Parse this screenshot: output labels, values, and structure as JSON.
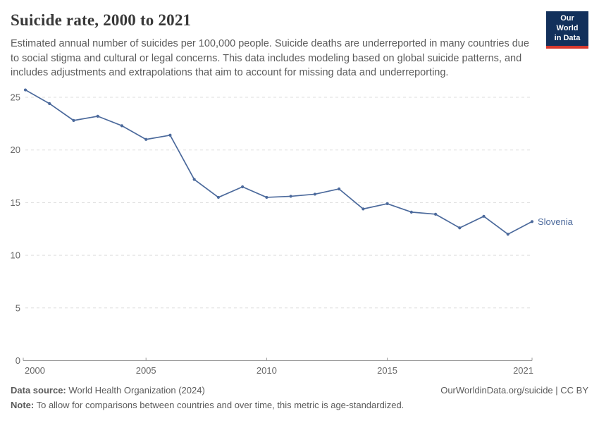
{
  "header": {
    "title": "Suicide rate, 2000 to 2021",
    "subtitle": "Estimated annual number of suicides per 100,000 people. Suicide deaths are underreported in many countries due to social stigma and cultural or legal concerns. This data includes modeling based on global suicide patterns, and includes adjustments and extrapolations that aim to account for missing data and underreporting.",
    "logo": {
      "line1": "Our World",
      "line2": "in Data",
      "bg_color": "#12305b",
      "stripe_color": "#d7382d"
    }
  },
  "chart_data": {
    "type": "line",
    "title": "Suicide rate, 2000 to 2021",
    "x": [
      2000,
      2001,
      2002,
      2003,
      2004,
      2005,
      2006,
      2007,
      2008,
      2009,
      2010,
      2011,
      2012,
      2013,
      2014,
      2015,
      2016,
      2017,
      2018,
      2019,
      2020,
      2021
    ],
    "series": [
      {
        "name": "Slovenia",
        "color": "#4c6a9c",
        "values": [
          25.7,
          24.4,
          22.8,
          23.2,
          22.3,
          21.0,
          21.4,
          17.2,
          15.5,
          16.5,
          15.5,
          15.6,
          15.8,
          16.3,
          14.4,
          14.9,
          14.1,
          13.9,
          12.6,
          13.7,
          12.0,
          13.2
        ]
      }
    ],
    "xticks": [
      2000,
      2005,
      2010,
      2015,
      2021
    ],
    "yticks": [
      0,
      5,
      10,
      15,
      20,
      25
    ],
    "ylim": [
      0,
      26
    ],
    "xlabel": "",
    "ylabel": "",
    "grid": "horizontal-dashed",
    "legend": "line-end-label"
  },
  "footer": {
    "source_label": "Data source:",
    "source_text": " World Health Organization (2024)",
    "note_label": "Note:",
    "note_text": " To allow for comparisons between countries and over time, this metric is age-standardized.",
    "link_text": "OurWorldinData.org/suicide | CC BY"
  },
  "colors": {
    "line": "#4c6a9c",
    "grid": "#dddddd",
    "axis": "#999999",
    "tick_label": "#666666",
    "body_text": "#5b5b5b"
  }
}
